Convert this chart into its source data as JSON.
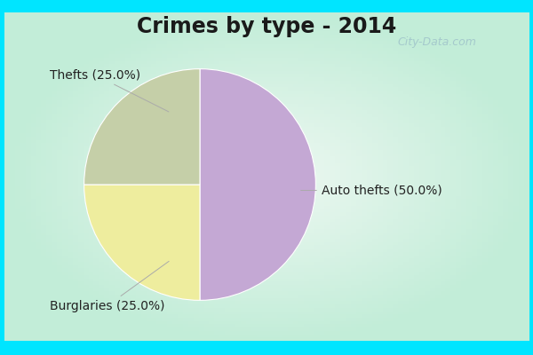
{
  "title": "Crimes by type - 2014",
  "slices": [
    {
      "label": "Auto thefts (50.0%)",
      "value": 50,
      "color": "#C4A8D4"
    },
    {
      "label": "Thefts (25.0%)",
      "value": 25,
      "color": "#EEED9E"
    },
    {
      "label": "Burglaries (25.0%)",
      "value": 25,
      "color": "#C5CFA8"
    }
  ],
  "background_outer": "#00E5FF",
  "background_inner_center": "#EEF8F2",
  "background_inner_edge": "#C2EDD8",
  "title_fontsize": 17,
  "label_fontsize": 10,
  "watermark": "City-Data.com"
}
